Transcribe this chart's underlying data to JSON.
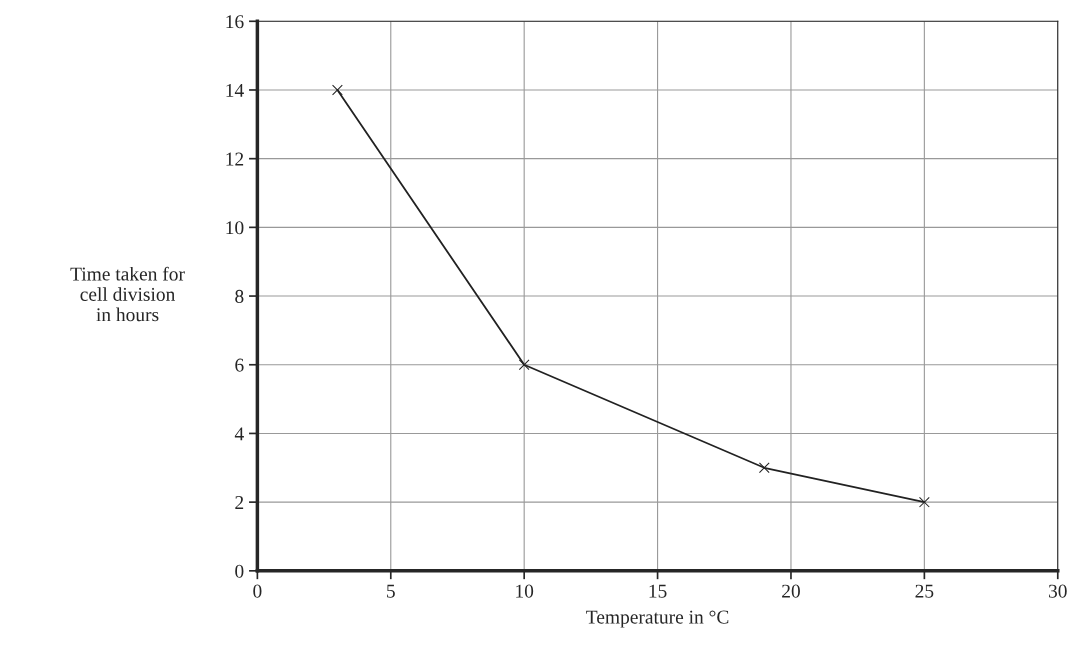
{
  "chart_data": {
    "type": "line",
    "xlabel": "Temperature in °C",
    "ylabel": "Time taken for\ncell division\nin hours",
    "x": [
      3,
      10,
      19,
      25
    ],
    "series": [
      {
        "color": "#222222",
        "values": [
          14,
          6,
          3,
          2
        ]
      }
    ],
    "xlim": [
      0,
      30
    ],
    "xticks": [
      0,
      5,
      10,
      15,
      20,
      25,
      30
    ],
    "ylim": [
      0,
      16
    ],
    "yticks": [
      0,
      2,
      4,
      6,
      8,
      10,
      12,
      14,
      16
    ],
    "grid": true,
    "marker": "cross",
    "line_style": "solid"
  }
}
